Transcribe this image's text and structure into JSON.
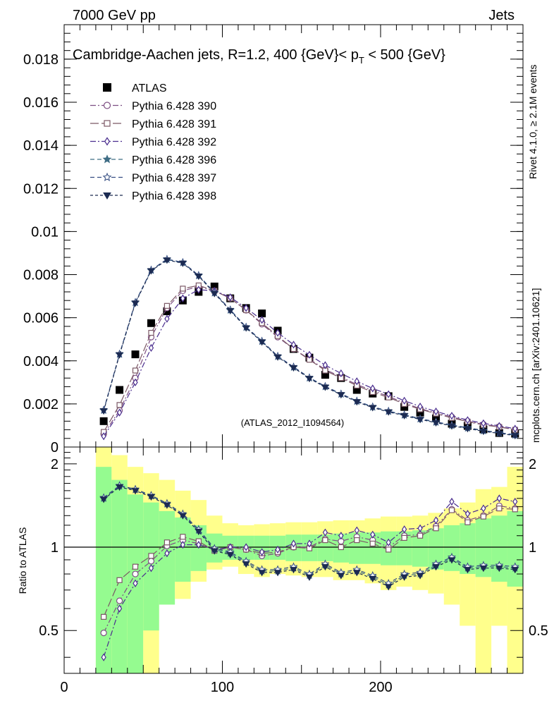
{
  "header": {
    "left": "7000 GeV pp",
    "right": "Jets"
  },
  "side": {
    "rivet": "Rivet 4.1.0, ≥ 2.1M events",
    "mcplots": "mcplots.cern.ch [arXiv:2401.10621]"
  },
  "watermark": "(ATLAS_2012_I1094564)",
  "chart_data": [
    {
      "type": "line",
      "title": "Cambridge-Aachen jets, R=1.2, 400 {GeV}< p_T < 500 {GeV}",
      "title_main": "Cambridge-Aachen jets, R=1.2, 400 {GeV}< p",
      "title_sub": "T",
      "title_tail": " < 500 {GeV}",
      "xlim": [
        0,
        290
      ],
      "ylim": [
        0,
        0.0196
      ],
      "yticks": [
        0,
        0.002,
        0.004,
        0.006,
        0.008,
        0.01,
        0.012,
        0.014,
        0.016,
        0.018
      ],
      "ytick_labels": [
        "0",
        "0.002",
        "0.004",
        "0.006",
        "0.008",
        "0.01",
        "0.012",
        "0.014",
        "0.016",
        "0.018"
      ],
      "x": [
        25,
        35,
        45,
        55,
        65,
        75,
        85,
        95,
        105,
        115,
        125,
        135,
        145,
        155,
        165,
        175,
        185,
        195,
        205,
        215,
        225,
        235,
        245,
        255,
        265,
        275,
        285
      ],
      "series": [
        {
          "name": "ATLAS",
          "color": "#000000",
          "marker": "square",
          "dash": "",
          "values": [
            0.0012,
            0.00265,
            0.0043,
            0.00575,
            0.0063,
            0.0068,
            0.0072,
            0.00745,
            0.0069,
            0.00645,
            0.0062,
            0.0054,
            0.00455,
            0.00415,
            0.00335,
            0.0032,
            0.00265,
            0.00248,
            0.00236,
            0.00186,
            0.0016,
            0.00133,
            0.00108,
            0.00098,
            0.00082,
            0.00065,
            0.00062
          ]
        },
        {
          "name": "Pythia 6.428 390",
          "color": "#7d4e82",
          "marker": "circle",
          "dash": "8 3 2 3",
          "values": [
            0.0006,
            0.0017,
            0.0032,
            0.0051,
            0.00645,
            0.00725,
            0.00745,
            0.00725,
            0.0069,
            0.00635,
            0.0057,
            0.0051,
            0.00455,
            0.00408,
            0.0036,
            0.00325,
            0.0029,
            0.00262,
            0.00235,
            0.00205,
            0.00178,
            0.00158,
            0.0014,
            0.0012,
            0.00105,
            0.00095,
            0.0008
          ]
        },
        {
          "name": "Pythia 6.428 391",
          "color": "#7b5865",
          "marker": "square-open",
          "dash": "12 4",
          "values": [
            0.0007,
            0.00195,
            0.00355,
            0.0053,
            0.00655,
            0.00735,
            0.0075,
            0.00725,
            0.0069,
            0.00635,
            0.00575,
            0.00515,
            0.00455,
            0.00405,
            0.00355,
            0.0032,
            0.00285,
            0.00255,
            0.0023,
            0.002,
            0.00175,
            0.00155,
            0.00135,
            0.00118,
            0.00102,
            0.00093,
            0.0008
          ]
        },
        {
          "name": "Pythia 6.428 392",
          "color": "#4a2d8e",
          "marker": "diamond-open",
          "dash": "8 3 2 3",
          "values": [
            0.0005,
            0.0016,
            0.003,
            0.0046,
            0.00595,
            0.0069,
            0.0073,
            0.00725,
            0.00695,
            0.00645,
            0.0059,
            0.0053,
            0.00475,
            0.00428,
            0.0038,
            0.00342,
            0.00305,
            0.00272,
            0.00245,
            0.00215,
            0.00188,
            0.00165,
            0.00145,
            0.00125,
            0.0011,
            0.00098,
            0.00085
          ]
        },
        {
          "name": "Pythia 6.428 396",
          "color": "#3f6d85",
          "marker": "star",
          "dash": "6 4",
          "values": [
            0.0017,
            0.0043,
            0.0067,
            0.0082,
            0.0087,
            0.00855,
            0.00795,
            0.00715,
            0.00635,
            0.00555,
            0.0049,
            0.0042,
            0.0037,
            0.0032,
            0.0028,
            0.00245,
            0.00212,
            0.00185,
            0.00165,
            0.00148,
            0.0013,
            0.00115,
            0.001,
            0.00088,
            0.00075,
            0.00065,
            0.00055
          ]
        },
        {
          "name": "Pythia 6.428 397",
          "color": "#354d82",
          "marker": "star-open",
          "dash": "6 4",
          "values": [
            0.00172,
            0.00432,
            0.00672,
            0.00822,
            0.00872,
            0.00857,
            0.00797,
            0.00717,
            0.00637,
            0.00557,
            0.00492,
            0.00422,
            0.00372,
            0.00322,
            0.00282,
            0.00247,
            0.00214,
            0.00187,
            0.00167,
            0.0015,
            0.00132,
            0.00117,
            0.00102,
            0.0009,
            0.00077,
            0.00067,
            0.00057
          ]
        },
        {
          "name": "Pythia 6.428 398",
          "color": "#1c2b52",
          "marker": "tri-down",
          "dash": "4 3",
          "values": [
            0.00168,
            0.00428,
            0.00668,
            0.00818,
            0.00868,
            0.00853,
            0.00793,
            0.00713,
            0.00633,
            0.00553,
            0.00488,
            0.00418,
            0.00368,
            0.00318,
            0.00278,
            0.00243,
            0.0021,
            0.00183,
            0.00163,
            0.00146,
            0.00128,
            0.00113,
            0.00098,
            0.00086,
            0.00073,
            0.00063,
            0.00053
          ]
        }
      ]
    },
    {
      "type": "line",
      "ylabel": "Ratio to ATLAS",
      "xlim": [
        0,
        290
      ],
      "ylim": [
        0.35,
        2.3
      ],
      "yticks": [
        0.5,
        1,
        2
      ],
      "ytick_labels": [
        "0.5",
        "1",
        "2"
      ],
      "xticks": [
        0,
        100,
        200
      ],
      "xtick_labels": [
        "0",
        "100",
        "200"
      ],
      "band_edges": [
        20,
        30,
        40,
        50,
        60,
        70,
        80,
        90,
        100,
        110,
        120,
        130,
        140,
        150,
        160,
        170,
        180,
        190,
        200,
        210,
        220,
        230,
        240,
        250,
        260,
        270,
        280,
        290
      ],
      "band_green_low": [
        0.35,
        0.35,
        0.35,
        0.5,
        0.62,
        0.75,
        0.82,
        0.88,
        0.9,
        0.9,
        0.9,
        0.9,
        0.89,
        0.89,
        0.89,
        0.88,
        0.87,
        0.87,
        0.86,
        0.86,
        0.85,
        0.83,
        0.82,
        0.8,
        0.78,
        0.75,
        0.72
      ],
      "band_green_high": [
        1.95,
        1.75,
        1.55,
        1.45,
        1.35,
        1.28,
        1.2,
        1.12,
        1.1,
        1.1,
        1.1,
        1.1,
        1.11,
        1.11,
        1.11,
        1.12,
        1.13,
        1.13,
        1.14,
        1.14,
        1.15,
        1.17,
        1.2,
        1.22,
        1.27,
        1.3,
        1.35
      ],
      "band_yellow_low": [
        0.35,
        0.35,
        0.35,
        0.35,
        0.7,
        0.65,
        0.75,
        0.83,
        0.85,
        0.8,
        0.78,
        0.8,
        0.79,
        0.78,
        0.78,
        0.76,
        0.76,
        0.74,
        0.7,
        0.72,
        0.7,
        0.68,
        0.62,
        0.52,
        0.35,
        0.52,
        0.35
      ],
      "band_yellow_high": [
        2.35,
        2.15,
        1.95,
        1.85,
        1.75,
        1.6,
        1.48,
        1.3,
        1.22,
        1.2,
        1.21,
        1.22,
        1.23,
        1.23,
        1.24,
        1.25,
        1.25,
        1.27,
        1.29,
        1.29,
        1.3,
        1.33,
        1.38,
        1.45,
        1.62,
        1.65,
        1.95
      ],
      "x": [
        25,
        35,
        45,
        55,
        65,
        75,
        85,
        95,
        105,
        115,
        125,
        135,
        145,
        155,
        165,
        175,
        185,
        195,
        205,
        215,
        225,
        235,
        245,
        255,
        265,
        275,
        285
      ],
      "series": [
        {
          "name": "Pythia 6.428 390",
          "color": "#7d4e82",
          "marker": "circle",
          "dash": "8 3 2 3",
          "values": [
            0.49,
            0.64,
            0.8,
            0.89,
            1.01,
            1.06,
            1.03,
            0.98,
            1.0,
            0.98,
            0.93,
            0.95,
            1.0,
            1.0,
            1.07,
            1.05,
            1.09,
            1.06,
            1.0,
            1.1,
            1.11,
            1.19,
            1.37,
            1.25,
            1.3,
            1.41,
            1.38
          ]
        },
        {
          "name": "Pythia 6.428 391",
          "color": "#7b5865",
          "marker": "square-open",
          "dash": "12 4",
          "values": [
            0.56,
            0.76,
            0.85,
            0.93,
            1.04,
            1.09,
            1.05,
            0.97,
            1.0,
            0.98,
            0.95,
            0.96,
            1.0,
            0.99,
            1.06,
            1.0,
            1.06,
            1.03,
            0.98,
            1.08,
            1.1,
            1.17,
            1.36,
            1.23,
            1.29,
            1.38,
            1.37
          ]
        },
        {
          "name": "Pythia 6.428 392",
          "color": "#4a2d8e",
          "marker": "diamond-open",
          "dash": "8 3 2 3",
          "values": [
            0.4,
            0.6,
            0.74,
            0.84,
            0.95,
            1.02,
            1.02,
            0.98,
            1.0,
            1.0,
            0.96,
            0.98,
            1.03,
            1.03,
            1.13,
            1.1,
            1.15,
            1.11,
            1.04,
            1.16,
            1.17,
            1.25,
            1.46,
            1.32,
            1.38,
            1.5,
            1.46
          ]
        },
        {
          "name": "Pythia 6.428 396",
          "color": "#3f6d85",
          "marker": "star",
          "dash": "6 4",
          "values": [
            1.5,
            1.66,
            1.61,
            1.53,
            1.43,
            1.31,
            1.15,
            0.98,
            0.95,
            0.88,
            0.82,
            0.82,
            0.84,
            0.79,
            0.86,
            0.8,
            0.82,
            0.78,
            0.73,
            0.79,
            0.8,
            0.86,
            0.91,
            0.84,
            0.85,
            0.85,
            0.84
          ]
        },
        {
          "name": "Pythia 6.428 397",
          "color": "#354d82",
          "marker": "star-open",
          "dash": "6 4",
          "values": [
            1.51,
            1.67,
            1.62,
            1.54,
            1.44,
            1.32,
            1.16,
            0.99,
            0.96,
            0.89,
            0.83,
            0.83,
            0.85,
            0.8,
            0.87,
            0.81,
            0.83,
            0.79,
            0.74,
            0.8,
            0.81,
            0.87,
            0.92,
            0.85,
            0.86,
            0.86,
            0.85
          ]
        },
        {
          "name": "Pythia 6.428 398",
          "color": "#1c2b52",
          "marker": "tri-down",
          "dash": "4 3",
          "values": [
            1.49,
            1.65,
            1.6,
            1.52,
            1.42,
            1.3,
            1.14,
            0.97,
            0.94,
            0.87,
            0.81,
            0.81,
            0.83,
            0.78,
            0.85,
            0.79,
            0.81,
            0.77,
            0.72,
            0.78,
            0.79,
            0.85,
            0.9,
            0.83,
            0.84,
            0.84,
            0.83
          ]
        }
      ]
    }
  ]
}
